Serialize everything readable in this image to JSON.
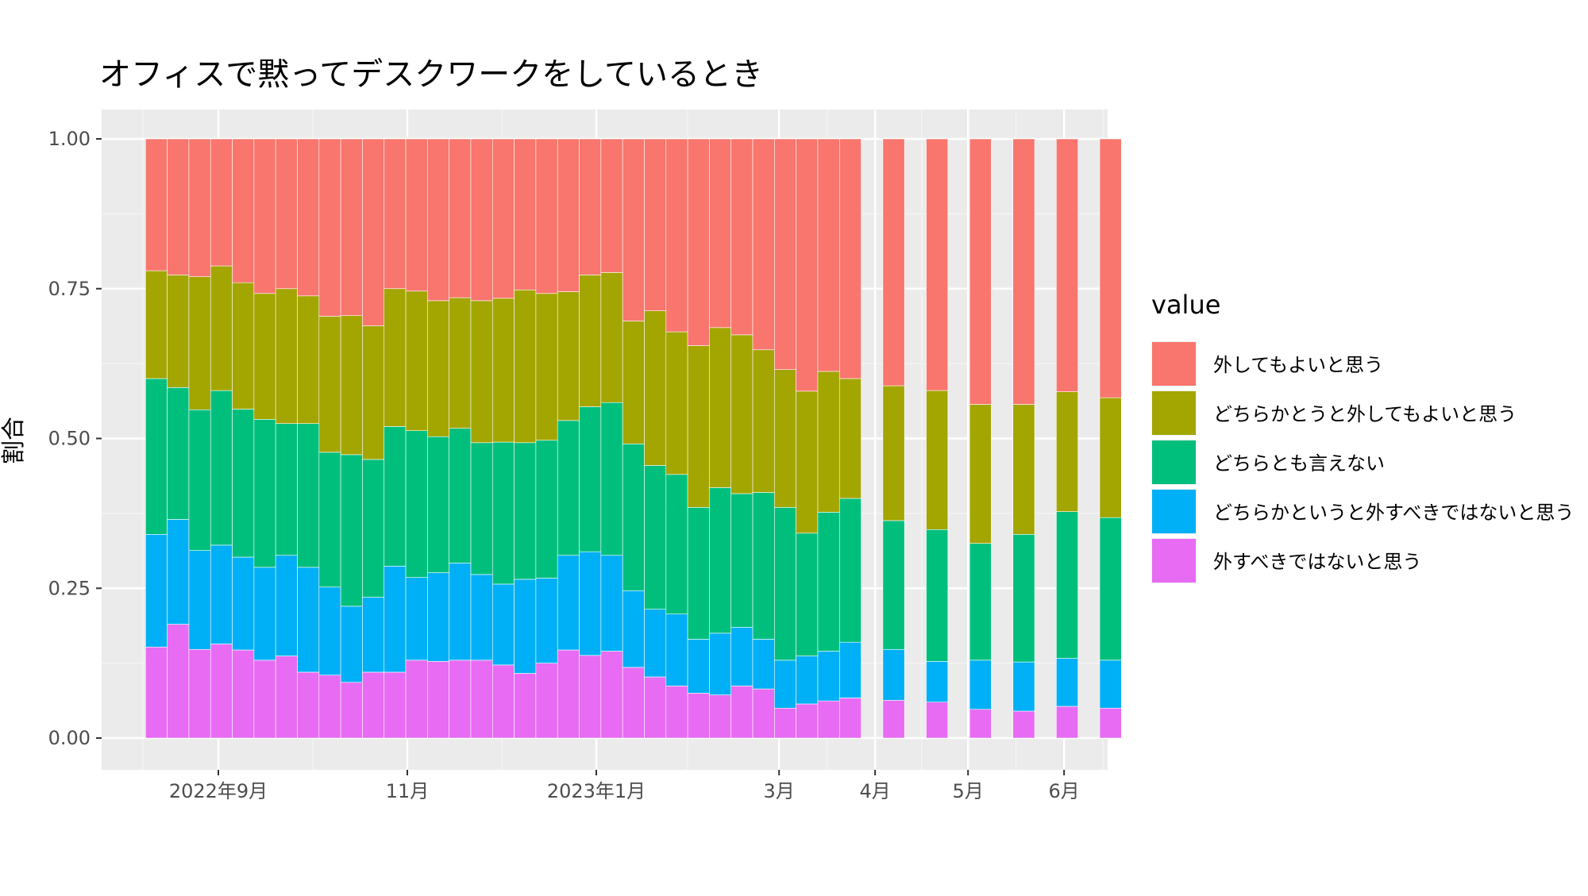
{
  "chart_data": {
    "type": "bar",
    "stacked": true,
    "title": "オフィスで黙ってデスクワークをしているとき",
    "ylabel": "割合",
    "xlabel": "",
    "ylim": [
      0,
      1
    ],
    "y_ticks": [
      "0.00",
      "0.25",
      "0.50",
      "0.75",
      "1.00"
    ],
    "x_ticks": [
      {
        "label": "2022年9月",
        "date": "2022-09-01"
      },
      {
        "label": "11月",
        "date": "2022-11-01"
      },
      {
        "label": "2023年1月",
        "date": "2023-01-01"
      },
      {
        "label": "3月",
        "date": "2023-03-01"
      },
      {
        "label": "4月",
        "date": "2023-04-01"
      },
      {
        "label": "5月",
        "date": "2023-05-01"
      },
      {
        "label": "6月",
        "date": "2023-06-01"
      }
    ],
    "grid": true,
    "legend": {
      "title": "value",
      "position": "right",
      "entries": [
        {
          "label": "外してもよいと思う",
          "color": "#F8766D"
        },
        {
          "label": "どちらかとうと外してもよいと思う",
          "color": "#A3A500"
        },
        {
          "label": "どちらとも言えない",
          "color": "#00BF7D"
        },
        {
          "label": "どちらかというと外すべきではないと思う",
          "color": "#00B0F6"
        },
        {
          "label": "外すべきではないと思う",
          "color": "#E76BF3"
        }
      ]
    },
    "series_order_bottom_to_top": [
      "外すべきではないと思う",
      "どちらかというと外すべきではないと思う",
      "どちらとも言えない",
      "どちらかとうと外してもよいと思う",
      "外してもよいと思う"
    ],
    "x": [
      "2022-08-12",
      "2022-08-19",
      "2022-08-26",
      "2022-09-02",
      "2022-09-09",
      "2022-09-16",
      "2022-09-23",
      "2022-09-30",
      "2022-10-07",
      "2022-10-14",
      "2022-10-21",
      "2022-10-28",
      "2022-11-04",
      "2022-11-11",
      "2022-11-18",
      "2022-11-25",
      "2022-12-02",
      "2022-12-09",
      "2022-12-16",
      "2022-12-23",
      "2022-12-30",
      "2023-01-06",
      "2023-01-13",
      "2023-01-20",
      "2023-01-27",
      "2023-02-03",
      "2023-02-10",
      "2023-02-17",
      "2023-02-24",
      "2023-03-03",
      "2023-03-10",
      "2023-03-17",
      "2023-03-24",
      "2023-04-07",
      "2023-04-21",
      "2023-05-05",
      "2023-05-19",
      "2023-06-02",
      "2023-06-16"
    ],
    "series": [
      {
        "name": "外すべきではないと思う",
        "values": [
          0.152,
          0.19,
          0.148,
          0.157,
          0.147,
          0.13,
          0.137,
          0.11,
          0.105,
          0.093,
          0.11,
          0.11,
          0.13,
          0.128,
          0.13,
          0.13,
          0.122,
          0.108,
          0.125,
          0.147,
          0.138,
          0.145,
          0.118,
          0.102,
          0.087,
          0.075,
          0.072,
          0.087,
          0.082,
          0.05,
          0.057,
          0.062,
          0.067,
          0.063,
          0.06,
          0.048,
          0.045,
          0.053,
          0.05
        ]
      },
      {
        "name": "どちらかというと外すべきではないと思う",
        "values": [
          0.188,
          0.175,
          0.165,
          0.165,
          0.155,
          0.155,
          0.168,
          0.175,
          0.147,
          0.127,
          0.125,
          0.177,
          0.138,
          0.148,
          0.162,
          0.143,
          0.135,
          0.157,
          0.142,
          0.158,
          0.173,
          0.16,
          0.128,
          0.113,
          0.12,
          0.09,
          0.103,
          0.098,
          0.083,
          0.08,
          0.08,
          0.083,
          0.093,
          0.085,
          0.068,
          0.082,
          0.082,
          0.08,
          0.08
        ]
      },
      {
        "name": "どちらとも言えない",
        "values": [
          0.26,
          0.22,
          0.235,
          0.258,
          0.247,
          0.247,
          0.22,
          0.24,
          0.225,
          0.253,
          0.23,
          0.233,
          0.245,
          0.227,
          0.225,
          0.22,
          0.237,
          0.228,
          0.23,
          0.225,
          0.242,
          0.255,
          0.245,
          0.24,
          0.233,
          0.22,
          0.243,
          0.223,
          0.245,
          0.255,
          0.205,
          0.232,
          0.24,
          0.215,
          0.22,
          0.195,
          0.213,
          0.245,
          0.238
        ]
      },
      {
        "name": "どちらかとうと外してもよいと思う",
        "values": [
          0.18,
          0.188,
          0.222,
          0.208,
          0.211,
          0.21,
          0.225,
          0.213,
          0.227,
          0.232,
          0.223,
          0.23,
          0.233,
          0.227,
          0.218,
          0.237,
          0.24,
          0.255,
          0.245,
          0.215,
          0.22,
          0.217,
          0.205,
          0.258,
          0.238,
          0.27,
          0.267,
          0.265,
          0.238,
          0.23,
          0.237,
          0.235,
          0.2,
          0.225,
          0.232,
          0.232,
          0.217,
          0.2,
          0.2
        ]
      },
      {
        "name": "外してもよいと思う",
        "values": [
          0.22,
          0.227,
          0.23,
          0.212,
          0.24,
          0.258,
          0.25,
          0.262,
          0.296,
          0.295,
          0.312,
          0.25,
          0.254,
          0.27,
          0.265,
          0.27,
          0.266,
          0.252,
          0.258,
          0.255,
          0.227,
          0.223,
          0.304,
          0.287,
          0.322,
          0.345,
          0.315,
          0.327,
          0.352,
          0.385,
          0.421,
          0.388,
          0.4,
          0.412,
          0.42,
          0.443,
          0.443,
          0.422,
          0.432
        ]
      }
    ],
    "gaps_after_index": 32
  }
}
